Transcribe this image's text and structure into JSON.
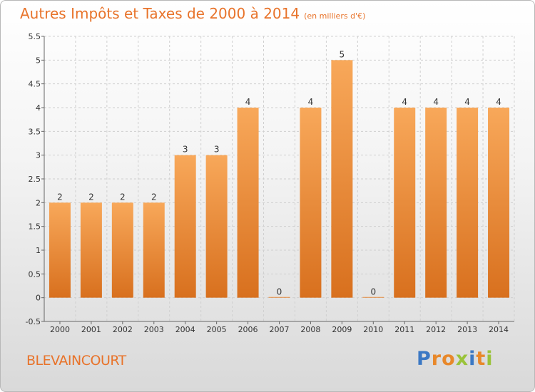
{
  "title": "Autres Impôts et Taxes de 2000 à 2014",
  "unit": "(en milliers d'€)",
  "commune": "BLEVAINCOURT",
  "logo": [
    "P",
    "r",
    "o",
    "x",
    "i",
    "t",
    "i"
  ],
  "colors": {
    "bar_light": "#f8a85a",
    "bar_dark": "#d8701e",
    "accent": "#e8732a"
  },
  "chart_data": {
    "type": "bar",
    "title": "Autres Impôts et Taxes de 2000 à 2014",
    "categories": [
      "2000",
      "2001",
      "2002",
      "2003",
      "2004",
      "2005",
      "2006",
      "2007",
      "2008",
      "2009",
      "2010",
      "2011",
      "2012",
      "2013",
      "2014"
    ],
    "values": [
      2,
      2,
      2,
      2,
      3,
      3,
      4,
      0,
      4,
      5,
      0,
      4,
      4,
      4,
      4
    ],
    "value_labels": [
      "2",
      "2",
      "2",
      "2",
      "3",
      "3",
      "4",
      "0",
      "4",
      "5",
      "0",
      "4",
      "4",
      "4",
      "4"
    ],
    "yticks": [
      "-0.5",
      "0",
      "0.5",
      "1",
      "1.5",
      "2",
      "2.5",
      "3",
      "3.5",
      "4",
      "4.5",
      "5",
      "5.5"
    ],
    "ylim": [
      -0.5,
      5.5
    ],
    "grid": true
  }
}
